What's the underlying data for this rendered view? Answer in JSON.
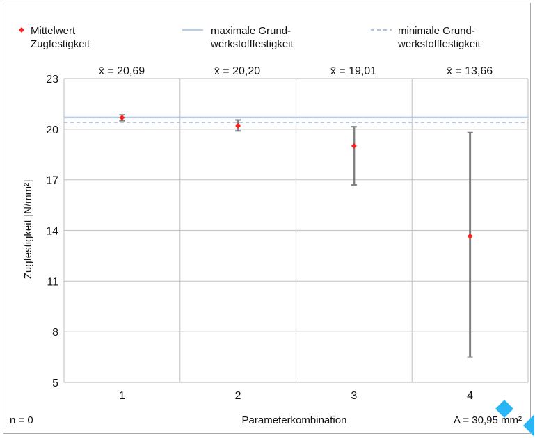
{
  "chart_data": {
    "type": "scatter",
    "title": "",
    "xlabel": "Parameterkombination",
    "ylabel": "Zugfestigkeit  [N/mm²]",
    "categories": [
      "1",
      "2",
      "3",
      "4"
    ],
    "ylim": [
      5,
      23
    ],
    "yticks": [
      "5",
      "8",
      "11",
      "14",
      "17",
      "20",
      "23"
    ],
    "grid": true,
    "legend_position": "top",
    "series": [
      {
        "name": "Mittelwert Zugfestigkeit",
        "type": "point_with_range",
        "values": [
          20.69,
          20.2,
          19.01,
          13.66
        ],
        "low": [
          20.5,
          19.9,
          16.7,
          6.5
        ],
        "high": [
          20.85,
          20.55,
          20.15,
          19.8
        ],
        "color": "#ff2020"
      }
    ],
    "reference_lines": [
      {
        "name": "maximale Grundwerkstofffestigkeit",
        "value": 20.7,
        "style": "solid",
        "color": "#b8cde3"
      },
      {
        "name": "minimale Grundwerkstofffestigkeit",
        "value": 20.4,
        "style": "dashed",
        "color": "#a9c3e0"
      }
    ],
    "mean_labels": [
      "x̄ = 20,69",
      "x̄ = 20,20",
      "x̄ = 19,01",
      "x̄ = 13,66"
    ],
    "legend": [
      {
        "line1": "Mittelwert",
        "line2": "Zugfestigkeit",
        "marker": "diamond"
      },
      {
        "line1": "maximale Grund-",
        "line2": "werkstofffestigkeit",
        "marker": "solid-line"
      },
      {
        "line1": "minimale Grund-",
        "line2": "werkstofffestigkeit",
        "marker": "dashed-line"
      }
    ],
    "annotations": {
      "n": "n = 0",
      "area": "A = 30,95 mm²"
    },
    "colors": {
      "grid": "#c8c8c8",
      "errorbar": "#808080",
      "mean": "#ff2020",
      "max_line": "#b8cde3",
      "min_line": "#a9c3e0",
      "watermark": "#29b6f6"
    }
  }
}
